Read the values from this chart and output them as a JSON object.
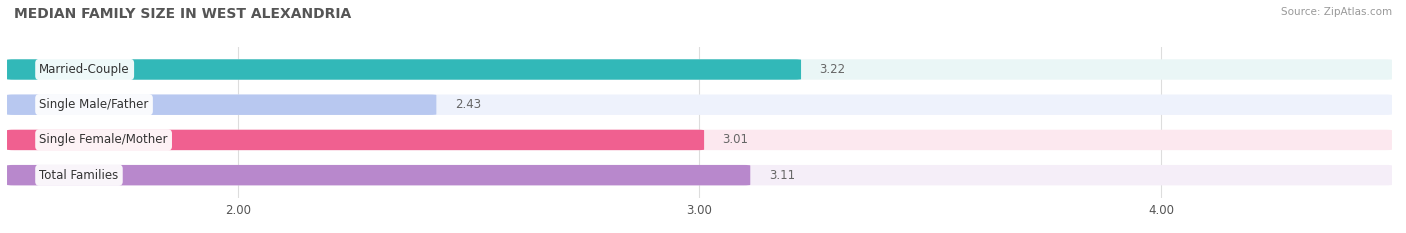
{
  "title": "MEDIAN FAMILY SIZE IN WEST ALEXANDRIA",
  "source": "Source: ZipAtlas.com",
  "categories": [
    "Married-Couple",
    "Single Male/Father",
    "Single Female/Mother",
    "Total Families"
  ],
  "values": [
    3.22,
    2.43,
    3.01,
    3.11
  ],
  "bar_colors": [
    "#32b8b8",
    "#b8c8f0",
    "#f06090",
    "#b888cc"
  ],
  "bar_bg_colors": [
    "#eaf6f6",
    "#eef2fc",
    "#fce8ef",
    "#f5eef8"
  ],
  "xlim": [
    0,
    4.5
  ],
  "xmin": 1.5,
  "xticks": [
    2.0,
    3.0,
    4.0
  ],
  "xtick_labels": [
    "2.00",
    "3.00",
    "4.00"
  ],
  "bar_height": 0.58,
  "label_color": "#555555",
  "value_color": "#666666",
  "title_color": "#555555",
  "source_color": "#999999",
  "background_color": "#ffffff"
}
